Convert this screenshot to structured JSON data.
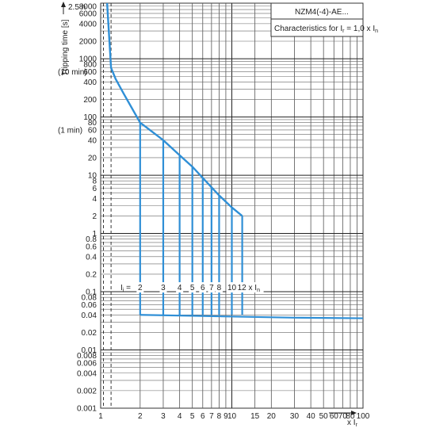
{
  "chart_data": {
    "type": "line",
    "title": "NZM4(-4)-AE...",
    "subtitle_main": "Characteristics for I",
    "subtitle_sub": "r",
    "subtitle_tail": " = 1,0 x I",
    "subtitle_sub2": "n",
    "ylabel": "Tripping time [s]",
    "ylabel_top": "2.5 h",
    "y_annot_10min": "(10 min)",
    "y_annot_1min": "(1 min)",
    "xlabel_main": "x I",
    "xlabel_sub": "r",
    "x_scale": "log",
    "y_scale": "log",
    "xlim": [
      1,
      100
    ],
    "ylim": [
      0.001,
      9000
    ],
    "grid": true,
    "x_ticks": [
      1,
      2,
      3,
      4,
      5,
      6,
      7,
      8,
      9,
      10,
      15,
      20,
      30,
      40,
      50,
      60,
      70,
      80,
      100
    ],
    "x_tick_labels": [
      "1",
      "2",
      "3",
      "4",
      "5",
      "6",
      "7",
      "8",
      "9",
      "10",
      "15",
      "20",
      "30",
      "40",
      "50",
      "60",
      "70",
      "80",
      "100"
    ],
    "y_ticks": [
      8000,
      6000,
      4000,
      2000,
      1000,
      800,
      600,
      400,
      200,
      100,
      80,
      60,
      40,
      20,
      10,
      8,
      6,
      4,
      2,
      1,
      0.8,
      0.6,
      0.4,
      0.2,
      0.1,
      0.08,
      0.06,
      0.04,
      0.02,
      0.01,
      0.008,
      0.006,
      0.004,
      0.002,
      0.001
    ],
    "y_tick_labels": [
      "8000",
      "6000",
      "4000",
      "2000",
      "1000",
      "800",
      "600",
      "400",
      "200",
      "100",
      "80",
      "60",
      "40",
      "20",
      "10",
      "8",
      "6",
      "4",
      "2",
      "1",
      "0.8",
      "0.6",
      "0.4",
      "0.2",
      "0.1",
      "0.08",
      "0.06",
      "0.04",
      "0.02",
      "0.01",
      "0.008",
      "0.006",
      "0.004",
      "0.002",
      "0.001"
    ],
    "overload_curve": {
      "x": [
        1.12,
        1.2,
        1.3,
        1.5,
        2,
        3,
        4,
        5,
        6,
        8,
        10,
        12
      ],
      "y": [
        9000,
        700,
        450,
        250,
        80,
        40,
        22,
        14,
        9,
        4.5,
        2.8,
        2
      ]
    },
    "short_circuit_setting_label": "I",
    "short_circuit_setting_label_sub": "i",
    "short_circuit_setting_eq": " =",
    "short_circuit_settings": [
      2,
      3,
      4,
      5,
      6,
      7,
      8,
      10,
      12
    ],
    "short_circuit_setting_labels": [
      "2",
      "3",
      "4",
      "5",
      "6",
      "7",
      "8",
      "10",
      "12 x I"
    ],
    "short_circuit_last_sub": "n",
    "instantaneous_time": 0.04,
    "instantaneous_end_time": 0.035,
    "line_color": "#2f8fd6",
    "dashed_x": [
      1.05,
      1.2
    ]
  }
}
